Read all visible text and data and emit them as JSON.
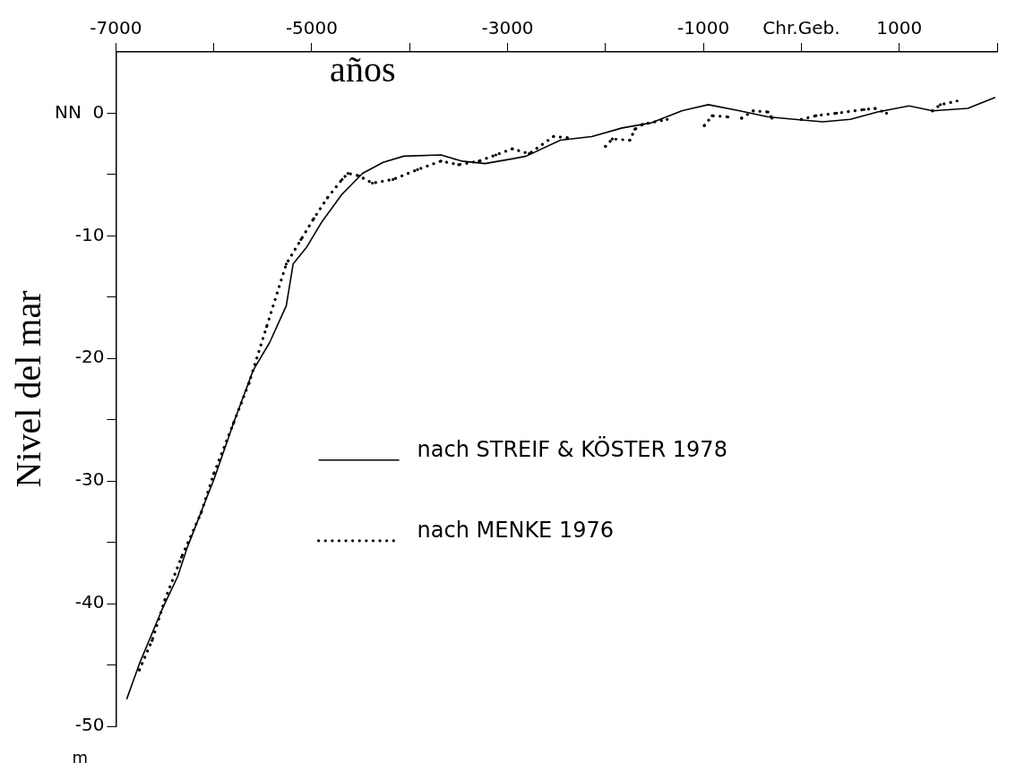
{
  "chart_data": {
    "type": "line",
    "xlabel": "años",
    "ylabel": "Nivel del mar",
    "annotations": [
      "m"
    ],
    "xlim": [
      -7000,
      2000
    ],
    "xticks": [
      -7000,
      {
        "value": -6000,
        "label": null
      },
      -5000,
      {
        "value": -4000,
        "label": null
      },
      -3000,
      {
        "value": -2000,
        "label": null
      },
      -1000,
      {
        "value": 0,
        "label": "Chr.Geb."
      },
      1000,
      {
        "value": 2000,
        "label": null
      }
    ],
    "ylim": [
      -50,
      5
    ],
    "yticks": [
      -50,
      {
        "value": -45,
        "label": null
      },
      -40,
      {
        "value": -35,
        "label": null
      },
      -30,
      {
        "value": -25,
        "label": null
      },
      -20,
      {
        "value": -15,
        "label": null
      },
      -10,
      {
        "value": -5,
        "label": null
      },
      {
        "value": 0,
        "label": "NN  0"
      }
    ],
    "grid": false,
    "legend": "center",
    "marker": "none",
    "series": [
      {
        "name": "nach STREIF & KÖSTER 1978",
        "color": "#000000",
        "line_style": "solid",
        "x": [
          -6890,
          -6760,
          -6530,
          -6370,
          -6270,
          -6070,
          -6000,
          -5800,
          -5600,
          -5430,
          -5260,
          -5190,
          -5050,
          -4900,
          -4690,
          -4480,
          -4270,
          -4060,
          -3680,
          -3470,
          -3230,
          -2940,
          -2810,
          -2460,
          -2140,
          -1830,
          -1540,
          -1220,
          -950,
          -630,
          -340,
          -70,
          220,
          500,
          780,
          1100,
          1340,
          1700,
          1980
        ],
        "values": [
          -47.8,
          -44.9,
          -40.5,
          -37.8,
          -35.4,
          -31.3,
          -29.9,
          -25.3,
          -21.0,
          -18.7,
          -15.7,
          -12.3,
          -10.9,
          -8.9,
          -6.6,
          -4.9,
          -4.0,
          -3.5,
          -3.4,
          -3.9,
          -4.1,
          -3.7,
          -3.5,
          -2.2,
          -1.9,
          -1.2,
          -0.8,
          0.2,
          0.7,
          0.2,
          -0.3,
          -0.5,
          -0.7,
          -0.5,
          0.1,
          0.6,
          0.2,
          0.4,
          1.3
        ]
      },
      {
        "name": "nach MENKE 1976",
        "color": "#000000",
        "line_style": "dotted",
        "x": [
          -6760,
          -6630,
          -6500,
          -6330,
          -6130,
          -6000,
          -5800,
          -5640,
          -5460,
          -5260,
          -5110,
          -4980,
          -4840,
          -4690,
          -4630,
          -4520,
          -4380,
          -4170,
          -3920,
          -3680,
          -3500,
          -3290,
          -3120,
          -2950,
          -2780,
          -2530,
          -2390,
          -2200,
          -2000,
          -1930,
          -1750,
          -1700,
          -1620,
          -1370,
          -1200,
          -990,
          -910,
          -750,
          -680,
          -610,
          -490,
          -340,
          -300,
          -150,
          0,
          150,
          360,
          640,
          750,
          870,
          1100,
          1340,
          1420,
          1590
        ],
        "values": [
          -45.4,
          -43.0,
          -39.7,
          -36.2,
          -32.6,
          -29.4,
          -25.3,
          -22.0,
          -17.4,
          -12.3,
          -10.3,
          -8.6,
          -6.9,
          -5.4,
          -4.9,
          -5.1,
          -5.7,
          -5.4,
          -4.6,
          -3.9,
          -4.2,
          -3.9,
          -3.4,
          -2.9,
          -3.3,
          -1.9,
          -2.0,
          null,
          -2.7,
          -2.1,
          -2.2,
          -1.3,
          -0.9,
          -0.5,
          null,
          -1.0,
          -0.2,
          -0.3,
          null,
          -0.4,
          0.2,
          0.1,
          -0.4,
          null,
          -0.5,
          -0.2,
          0.0,
          0.3,
          0.4,
          0.0,
          null,
          0.2,
          0.7,
          1.0
        ]
      }
    ]
  }
}
